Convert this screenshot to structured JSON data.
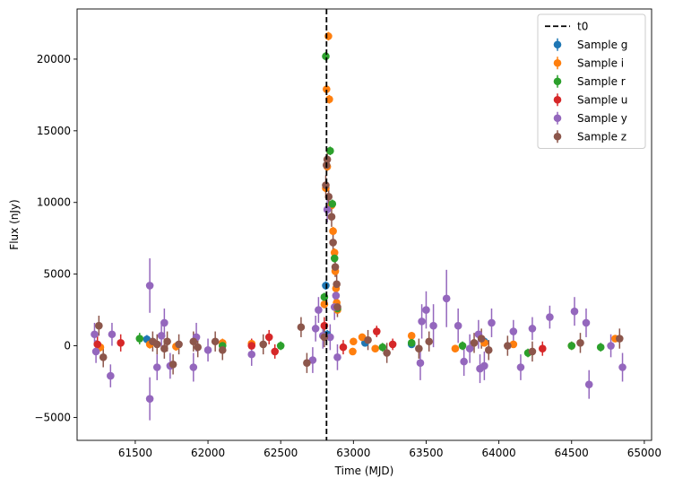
{
  "chart_data": {
    "type": "scatter",
    "title": "",
    "xlabel": "Time (MJD)",
    "ylabel": "Flux (nJy)",
    "xlim": [
      61100,
      65050
    ],
    "ylim": [
      -6600,
      23500
    ],
    "xticks": [
      61500,
      62000,
      62500,
      63000,
      63500,
      64000,
      64500,
      65000
    ],
    "yticks": [
      -5000,
      0,
      5000,
      10000,
      15000,
      20000
    ],
    "legend_position": "top-right",
    "vline": {
      "label": "t0",
      "x": 62815,
      "style": "dashed",
      "color": "#000000"
    },
    "series": [
      {
        "name": "Sample g",
        "color": "#1f77b4",
        "points": [
          [
            61580,
            450,
            300
          ],
          [
            62810,
            4200,
            300
          ],
          [
            62820,
            800,
            300
          ],
          [
            63080,
            200,
            250
          ],
          [
            63400,
            100,
            250
          ],
          [
            63900,
            300,
            300
          ]
        ]
      },
      {
        "name": "Sample i",
        "color": "#ff7f0e",
        "points": [
          [
            61260,
            -100,
            300
          ],
          [
            61600,
            100,
            300
          ],
          [
            61780,
            -50,
            300
          ],
          [
            62100,
            200,
            300
          ],
          [
            62300,
            150,
            300
          ],
          [
            62800,
            2900,
            300
          ],
          [
            62810,
            11000,
            300
          ],
          [
            62815,
            17900,
            300
          ],
          [
            62820,
            12500,
            300
          ],
          [
            62828,
            21600,
            300
          ],
          [
            62834,
            17200,
            300
          ],
          [
            62850,
            9800,
            300
          ],
          [
            62860,
            8000,
            300
          ],
          [
            62870,
            6500,
            300
          ],
          [
            62875,
            5200,
            300
          ],
          [
            62880,
            4000,
            300
          ],
          [
            62885,
            3000,
            300
          ],
          [
            62890,
            2500,
            300
          ],
          [
            62995,
            -400,
            250
          ],
          [
            63000,
            300,
            250
          ],
          [
            63060,
            600,
            250
          ],
          [
            63150,
            -200,
            250
          ],
          [
            63400,
            700,
            250
          ],
          [
            63700,
            -200,
            250
          ],
          [
            63900,
            200,
            250
          ],
          [
            64100,
            100,
            250
          ],
          [
            64500,
            0,
            250
          ],
          [
            64800,
            500,
            250
          ]
        ]
      },
      {
        "name": "Sample r",
        "color": "#2ca02c",
        "points": [
          [
            61530,
            500,
            400
          ],
          [
            62100,
            0,
            300
          ],
          [
            62500,
            0,
            300
          ],
          [
            62800,
            3400,
            300
          ],
          [
            62810,
            20200,
            300
          ],
          [
            62840,
            13600,
            300
          ],
          [
            62855,
            9900,
            300
          ],
          [
            62870,
            6100,
            300
          ],
          [
            62890,
            2600,
            300
          ],
          [
            63200,
            -100,
            300
          ],
          [
            63400,
            200,
            300
          ],
          [
            63750,
            0,
            300
          ],
          [
            64200,
            -500,
            300
          ],
          [
            64500,
            0,
            300
          ],
          [
            64700,
            -100,
            300
          ]
        ]
      },
      {
        "name": "Sample u",
        "color": "#d62728",
        "points": [
          [
            61240,
            100,
            600
          ],
          [
            61400,
            200,
            600
          ],
          [
            62300,
            0,
            500
          ],
          [
            62420,
            600,
            500
          ],
          [
            62460,
            -400,
            500
          ],
          [
            62800,
            1400,
            600
          ],
          [
            62930,
            -100,
            500
          ],
          [
            63160,
            1000,
            400
          ],
          [
            63270,
            100,
            400
          ],
          [
            64300,
            -200,
            500
          ]
        ]
      },
      {
        "name": "Sample y",
        "color": "#9467bd",
        "points": [
          [
            61220,
            800,
            800
          ],
          [
            61230,
            -400,
            800
          ],
          [
            61330,
            -2100,
            800
          ],
          [
            61340,
            800,
            800
          ],
          [
            61600,
            4200,
            1900
          ],
          [
            61600,
            -3700,
            1500
          ],
          [
            61650,
            -1500,
            900
          ],
          [
            61680,
            700,
            900
          ],
          [
            61700,
            1600,
            1000
          ],
          [
            61740,
            -1400,
            900
          ],
          [
            61900,
            -1500,
            1000
          ],
          [
            61920,
            600,
            1000
          ],
          [
            62000,
            -300,
            800
          ],
          [
            62300,
            -600,
            800
          ],
          [
            62720,
            -1000,
            900
          ],
          [
            62740,
            1200,
            900
          ],
          [
            62760,
            2500,
            900
          ],
          [
            62790,
            700,
            900
          ],
          [
            62820,
            9500,
            900
          ],
          [
            62840,
            600,
            900
          ],
          [
            62870,
            2700,
            900
          ],
          [
            62880,
            3500,
            900
          ],
          [
            62890,
            -800,
            900
          ],
          [
            63470,
            1700,
            1200
          ],
          [
            63460,
            -1200,
            1200
          ],
          [
            63500,
            2500,
            1300
          ],
          [
            63550,
            1400,
            1500
          ],
          [
            63640,
            3300,
            2000
          ],
          [
            63720,
            1400,
            1200
          ],
          [
            63760,
            -1100,
            1000
          ],
          [
            63800,
            -200,
            1000
          ],
          [
            63860,
            800,
            1000
          ],
          [
            63870,
            -1600,
            1000
          ],
          [
            63900,
            -1400,
            1000
          ],
          [
            63950,
            1600,
            1000
          ],
          [
            64100,
            1000,
            800
          ],
          [
            64150,
            -1500,
            900
          ],
          [
            64230,
            1200,
            800
          ],
          [
            64350,
            2000,
            800
          ],
          [
            64520,
            2400,
            1000
          ],
          [
            64600,
            1600,
            1000
          ],
          [
            64620,
            -2700,
            1000
          ],
          [
            64850,
            -1500,
            1000
          ],
          [
            64770,
            0,
            800
          ]
        ]
      },
      {
        "name": "Sample z",
        "color": "#8c564b",
        "points": [
          [
            61250,
            1400,
            700
          ],
          [
            61280,
            -800,
            700
          ],
          [
            61620,
            300,
            700
          ],
          [
            61650,
            100,
            700
          ],
          [
            61700,
            -200,
            700
          ],
          [
            61720,
            300,
            700
          ],
          [
            61760,
            -1300,
            700
          ],
          [
            61800,
            100,
            700
          ],
          [
            61900,
            300,
            700
          ],
          [
            61930,
            -100,
            700
          ],
          [
            62050,
            300,
            700
          ],
          [
            62100,
            -300,
            700
          ],
          [
            62380,
            100,
            700
          ],
          [
            62640,
            1300,
            700
          ],
          [
            62680,
            -1200,
            700
          ],
          [
            62800,
            600,
            700
          ],
          [
            62810,
            11200,
            700
          ],
          [
            62815,
            12600,
            700
          ],
          [
            62820,
            13000,
            700
          ],
          [
            62830,
            10400,
            700
          ],
          [
            62850,
            9000,
            700
          ],
          [
            62860,
            7200,
            700
          ],
          [
            62875,
            5500,
            700
          ],
          [
            62885,
            4300,
            700
          ],
          [
            62890,
            2700,
            700
          ],
          [
            63100,
            400,
            700
          ],
          [
            63230,
            -500,
            700
          ],
          [
            63450,
            -200,
            700
          ],
          [
            63520,
            300,
            700
          ],
          [
            63830,
            200,
            700
          ],
          [
            63880,
            500,
            700
          ],
          [
            63930,
            -300,
            700
          ],
          [
            64060,
            0,
            700
          ],
          [
            64230,
            -400,
            700
          ],
          [
            64560,
            200,
            700
          ],
          [
            64830,
            500,
            700
          ]
        ]
      }
    ]
  }
}
